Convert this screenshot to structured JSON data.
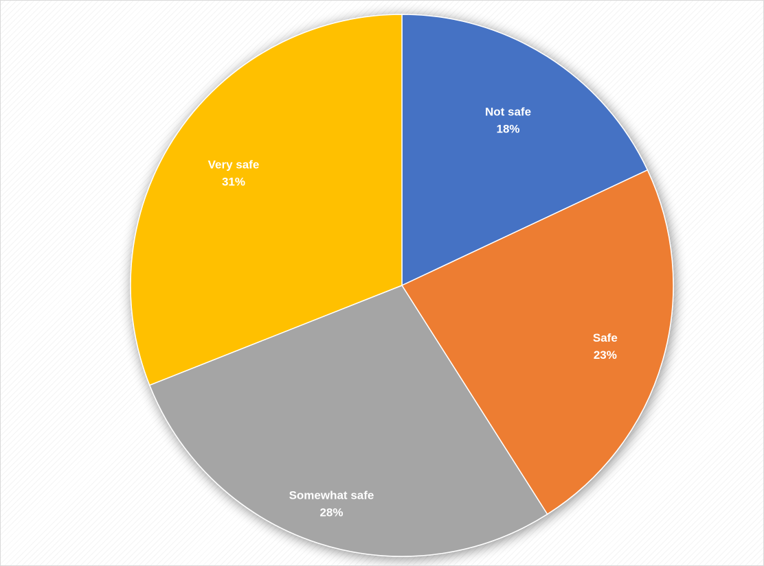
{
  "chart_data": {
    "type": "pie",
    "categories": [
      "Not safe",
      "Safe",
      "Somewhat safe",
      "Very safe"
    ],
    "values": [
      18,
      23,
      28,
      31
    ],
    "value_labels": [
      "18%",
      "23%",
      "28%",
      "31%"
    ],
    "colors": [
      "#4472C4",
      "#ED7D31",
      "#A5A5A5",
      "#FFC000"
    ],
    "start_angle": "12 o'clock",
    "direction": "clockwise",
    "legend": "none",
    "data_labels": "inside"
  }
}
